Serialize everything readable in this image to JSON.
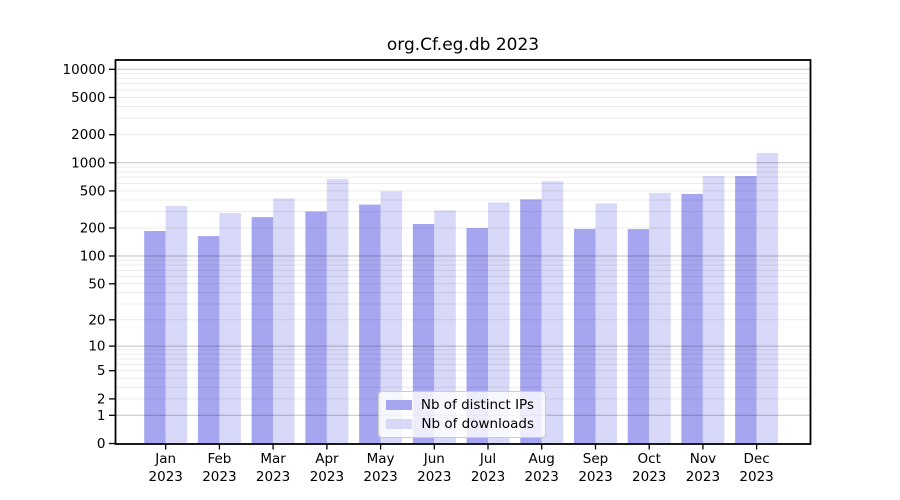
{
  "chart_data": {
    "type": "bar",
    "title": "org.Cf.eg.db 2023",
    "categories": [
      "Jan 2023",
      "Feb 2023",
      "Mar 2023",
      "Apr 2023",
      "May 2023",
      "Jun 2023",
      "Jul 2023",
      "Aug 2023",
      "Sep 2023",
      "Oct 2023",
      "Nov 2023",
      "Dec 2023"
    ],
    "series": [
      {
        "name": "Nb of distinct IPs",
        "color": "#a6a6f0",
        "values": [
          186,
          164,
          262,
          301,
          357,
          221,
          200,
          406,
          196,
          195,
          464,
          723
        ]
      },
      {
        "name": "Nb of downloads",
        "color": "#d8d8f8",
        "values": [
          345,
          290,
          415,
          670,
          495,
          309,
          376,
          634,
          368,
          476,
          723,
          1273
        ]
      }
    ],
    "xlabel": "",
    "ylabel": "",
    "yscale": "log1p",
    "ylim": [
      0,
      12500
    ],
    "yticks": [
      0,
      1,
      2,
      5,
      10,
      20,
      50,
      100,
      200,
      500,
      1000,
      2000,
      5000,
      10000
    ],
    "grid": "horizontal, minor log gridlines, drawn over bars",
    "legend_position": "lower center inside plot",
    "colors": {
      "bar_distinct_ips": "#a6a6f0",
      "bar_downloads": "#d8d8f8",
      "grid_major": "rgba(0,0,0,0.24)",
      "grid_minor": "rgba(0,0,0,0.08)",
      "frame": "#000000",
      "background": "#ffffff"
    }
  }
}
